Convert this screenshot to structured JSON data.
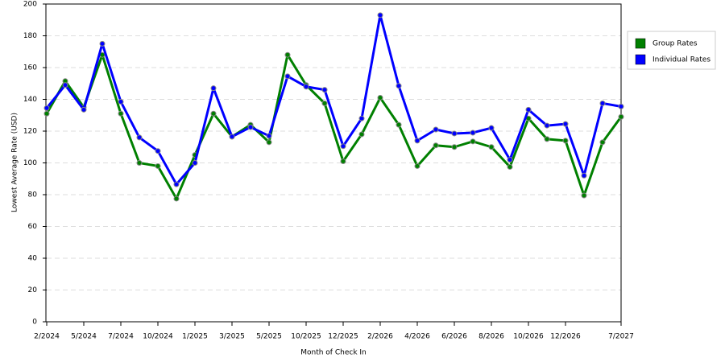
{
  "chart_data": {
    "type": "line",
    "x_label": "Month of Check In",
    "y_label": "Lowest Average Rate (USD)",
    "categories": [
      "2/2024",
      null,
      "5/2024",
      null,
      "7/2024",
      null,
      "10/2024",
      null,
      "1/2025",
      null,
      "3/2025",
      null,
      "5/2025",
      null,
      "10/2025",
      null,
      "12/2025",
      null,
      "2/2026",
      null,
      "4/2026",
      null,
      "6/2026",
      null,
      "8/2026",
      null,
      "10/2026",
      null,
      "12/2026",
      null,
      null,
      "7/2027"
    ],
    "series": [
      {
        "name": "Group Rates",
        "color": "#008000",
        "values": [
          131,
          151.5,
          135,
          168,
          131,
          100,
          98,
          77.5,
          105,
          131,
          116.5,
          124,
          113,
          168,
          149,
          137.5,
          101,
          118,
          141,
          124,
          98,
          111,
          110,
          113.5,
          110,
          97.5,
          128,
          115,
          114,
          79.5,
          113,
          129
        ]
      },
      {
        "name": "Individual Rates",
        "color": "#0000ff",
        "values": [
          134.5,
          149,
          133.5,
          175,
          138.5,
          116,
          107.5,
          86.5,
          100,
          147,
          116.5,
          122.5,
          117,
          154.5,
          148,
          146,
          110.5,
          128,
          193,
          148.5,
          114,
          121,
          118.5,
          119,
          122,
          102,
          133.5,
          123.5,
          124.5,
          92,
          137.5,
          135.5
        ]
      }
    ],
    "ylim": [
      0,
      200
    ],
    "yticks": [
      0,
      20,
      40,
      60,
      80,
      100,
      120,
      140,
      160,
      180,
      200
    ],
    "grid": true,
    "legend": "right"
  }
}
